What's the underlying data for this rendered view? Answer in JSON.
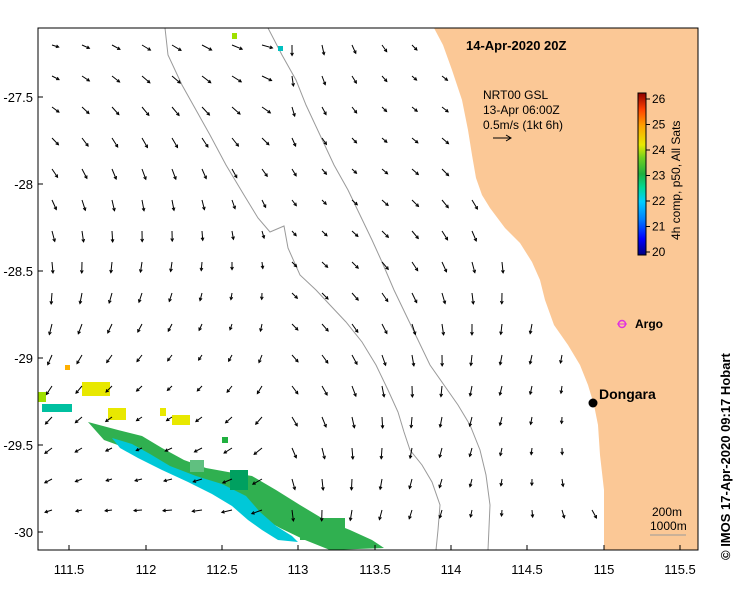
{
  "title": "14-Apr-2020 20Z",
  "colorbar": {
    "ticks": [
      "26",
      "25",
      "24",
      "23",
      "22",
      "21",
      "20"
    ],
    "label": "4h comp, p50, All Sats",
    "colors": [
      "#00007f",
      "#0000ff",
      "#007fff",
      "#00cfff",
      "#00e0a0",
      "#00b050",
      "#30c030",
      "#9fe000",
      "#e8e800",
      "#ffb000",
      "#ff6000",
      "#e02000",
      "#8f0000"
    ]
  },
  "current_legend": {
    "line1": "NRT00 GSL",
    "line2": "13-Apr 06:00Z",
    "line3": "0.5m/s (1kt 6h)"
  },
  "markers": {
    "argo": "Argo",
    "dongara": "Dongara"
  },
  "isobaths": {
    "label1": "200m",
    "label2": "1000m"
  },
  "axes": {
    "x_ticks": [
      "111.5",
      "112",
      "112.5",
      "113",
      "113.5",
      "114",
      "114.5",
      "115",
      "115.5"
    ],
    "y_ticks": [
      "-27.5",
      "-28",
      "-28.5",
      "-29",
      "-29.5",
      "-30"
    ]
  },
  "credit": "© IMOS 17-Apr-2020 09:17 Hobart",
  "colors": {
    "land": "#fbc896",
    "argo": "#e030e0",
    "contour": "#9a9a9a"
  }
}
